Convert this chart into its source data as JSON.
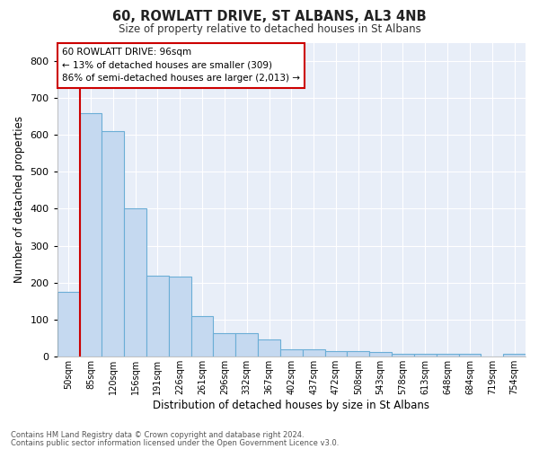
{
  "title1": "60, ROWLATT DRIVE, ST ALBANS, AL3 4NB",
  "title2": "Size of property relative to detached houses in St Albans",
  "xlabel": "Distribution of detached houses by size in St Albans",
  "ylabel": "Number of detached properties",
  "categories": [
    "50sqm",
    "85sqm",
    "120sqm",
    "156sqm",
    "191sqm",
    "226sqm",
    "261sqm",
    "296sqm",
    "332sqm",
    "367sqm",
    "402sqm",
    "437sqm",
    "472sqm",
    "508sqm",
    "543sqm",
    "578sqm",
    "613sqm",
    "648sqm",
    "684sqm",
    "719sqm",
    "754sqm"
  ],
  "values": [
    175,
    660,
    610,
    400,
    218,
    215,
    110,
    63,
    63,
    45,
    18,
    18,
    14,
    14,
    11,
    8,
    8,
    8,
    8,
    0,
    7
  ],
  "bar_color": "#c5d9f0",
  "bar_edge_color": "#6baed6",
  "bg_color": "#e8eef8",
  "grid_color": "#ffffff",
  "property_line_color": "#cc0000",
  "property_line_x": 0.5,
  "annotation_text": "60 ROWLATT DRIVE: 96sqm\n← 13% of detached houses are smaller (309)\n86% of semi-detached houses are larger (2,013) →",
  "annotation_box_color": "#ffffff",
  "annotation_box_edge_color": "#cc0000",
  "ylim": [
    0,
    850
  ],
  "yticks": [
    0,
    100,
    200,
    300,
    400,
    500,
    600,
    700,
    800
  ],
  "footer1": "Contains HM Land Registry data © Crown copyright and database right 2024.",
  "footer2": "Contains public sector information licensed under the Open Government Licence v3.0."
}
